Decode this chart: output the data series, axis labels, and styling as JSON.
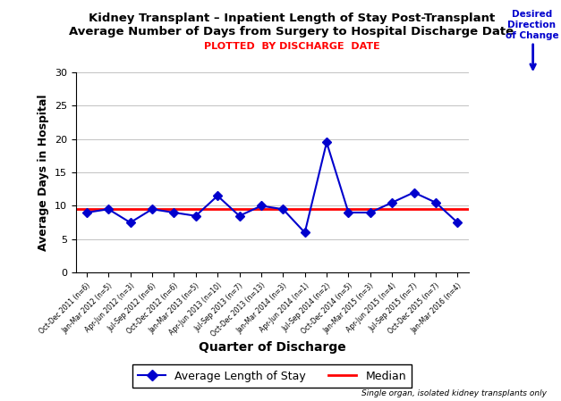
{
  "title_line1": "Kidney Transplant – Inpatient Length of Stay Post-Transplant",
  "title_line2": "Average Number of Days from Surgery to Hospital Discharge Date",
  "subtitle": "PLOTTED  BY DISCHARGE  DATE",
  "xlabel": "Quarter of Discharge",
  "ylabel": "Average Days in Hospital",
  "desired_label_line1": "Desired",
  "desired_label_line2": "Direction",
  "desired_label_line3": "of Change",
  "median_value": 9.5,
  "ylim": [
    0,
    30
  ],
  "yticks": [
    0,
    5,
    10,
    15,
    20,
    25,
    30
  ],
  "categories": [
    "Oct-Dec 2011 (n=6)",
    "Jan-Mar 2012 (n=5)",
    "Apr-Jun 2012 (n=3)",
    "Jul-Sep 2012 (n=6)",
    "Oct-Dec 2012 (n=6)",
    "Jan-Mar 2013 (n=5)",
    "Apr-Jun 2013 (n=10)",
    "Jul-Sep 2013 (n=7)",
    "Oct-Dec 2013 (n=13)",
    "Jan-Mar 2014 (n=3)",
    "Apr-Jun 2014 (n=1)",
    "Jul-Sep 2014 (n=2)",
    "Oct-Dec 2014 (n=5)",
    "Jan-Mar 2015 (n=3)",
    "Apr-Jun 2015 (n=4)",
    "Jul-Sep 2015 (n=7)",
    "Oct-Dec 2015 (n=7)",
    "Jan-Mar 2016 (n=4)"
  ],
  "values": [
    9.0,
    9.5,
    7.5,
    9.5,
    9.0,
    8.5,
    11.5,
    8.5,
    10.0,
    9.5,
    6.0,
    19.5,
    9.0,
    9.0,
    10.5,
    12.0,
    10.5,
    7.5
  ],
  "line_color": "#0000CD",
  "median_color": "#FF0000",
  "marker": "D",
  "marker_size": 5,
  "line_width": 1.5,
  "legend_label_line": "Average Length of Stay",
  "legend_label_median": "Median",
  "footnote": "Single organ, isolated kidney transplants only",
  "arrow_color": "#0000CD",
  "subtitle_color": "#FF0000",
  "title_color": "#000000",
  "grid_color": "#aaaaaa",
  "background_color": "#FFFFFF",
  "logo_bg_color": "#003087",
  "logo_red_color": "#CC0000"
}
